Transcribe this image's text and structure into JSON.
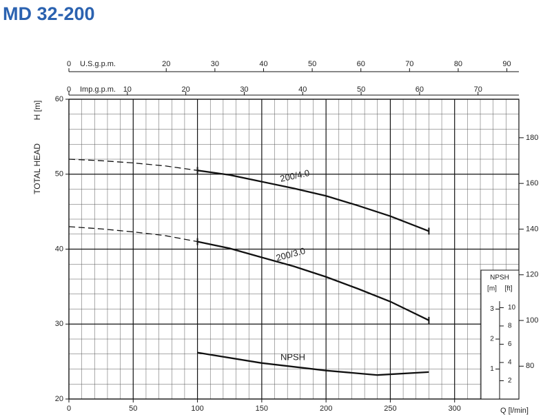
{
  "chart_data": {
    "type": "line",
    "title": "MD 32-200",
    "xlabel": "Q [l/min]",
    "ylabel": "TOTAL HEAD",
    "ylabel_unit": "H [m]",
    "xlim": [
      0,
      350
    ],
    "xticks": [
      0,
      50,
      100,
      150,
      200,
      250,
      300
    ],
    "ylim": [
      20,
      60
    ],
    "yticks": [
      20,
      30,
      40,
      50,
      60
    ],
    "y2lim": [
      65.62,
      196.85
    ],
    "y2ticks": [
      80,
      100,
      120,
      140,
      160,
      180
    ],
    "grid": true,
    "minor_xstep": 10,
    "minor_ystep": 2,
    "top_axes": [
      {
        "label": "U.S.g.p.m.",
        "xlim": [
          0,
          92.47
        ],
        "xticks": [
          0,
          20,
          30,
          40,
          50,
          60,
          70,
          80,
          90
        ]
      },
      {
        "label": "Imp.g.p.m.",
        "xlim": [
          0,
          76.99
        ],
        "xticks": [
          0,
          10,
          20,
          30,
          40,
          50,
          60,
          70
        ]
      }
    ],
    "npsh_axis": {
      "title": "NPSH",
      "unit_m": "[m]",
      "unit_ft": "[ft]",
      "ylim": [
        0,
        4.3
      ],
      "yticks": [
        1,
        2,
        3
      ],
      "ftlim": [
        0,
        14.11
      ],
      "ftticks": [
        2,
        4,
        6,
        8,
        10
      ]
    },
    "series": [
      {
        "style": "dashed",
        "color": "#111111",
        "x": [
          0,
          25,
          50,
          75,
          100
        ],
        "values": [
          52,
          51.8,
          51.5,
          51.1,
          50.5
        ]
      },
      {
        "name": "200/4.0",
        "style": "solid",
        "color": "#111111",
        "x": [
          100,
          125,
          150,
          175,
          200,
          225,
          250,
          280
        ],
        "values": [
          50.5,
          49.9,
          49.0,
          48.1,
          47.1,
          45.8,
          44.4,
          42.4
        ]
      },
      {
        "style": "dashed",
        "color": "#111111",
        "x": [
          0,
          25,
          50,
          75,
          100
        ],
        "values": [
          43,
          42.7,
          42.3,
          41.8,
          41.0
        ]
      },
      {
        "name": "200/3.0",
        "style": "solid",
        "color": "#111111",
        "x": [
          100,
          125,
          150,
          175,
          200,
          225,
          250,
          280
        ],
        "values": [
          41.0,
          40.1,
          38.9,
          37.7,
          36.3,
          34.7,
          33.0,
          30.5
        ]
      },
      {
        "name": "NPSH",
        "axis": "y3",
        "style": "solid",
        "color": "#111111",
        "x": [
          100,
          150,
          200,
          240,
          280
        ],
        "values": [
          1.55,
          1.2,
          0.95,
          0.8,
          0.9
        ]
      }
    ]
  }
}
